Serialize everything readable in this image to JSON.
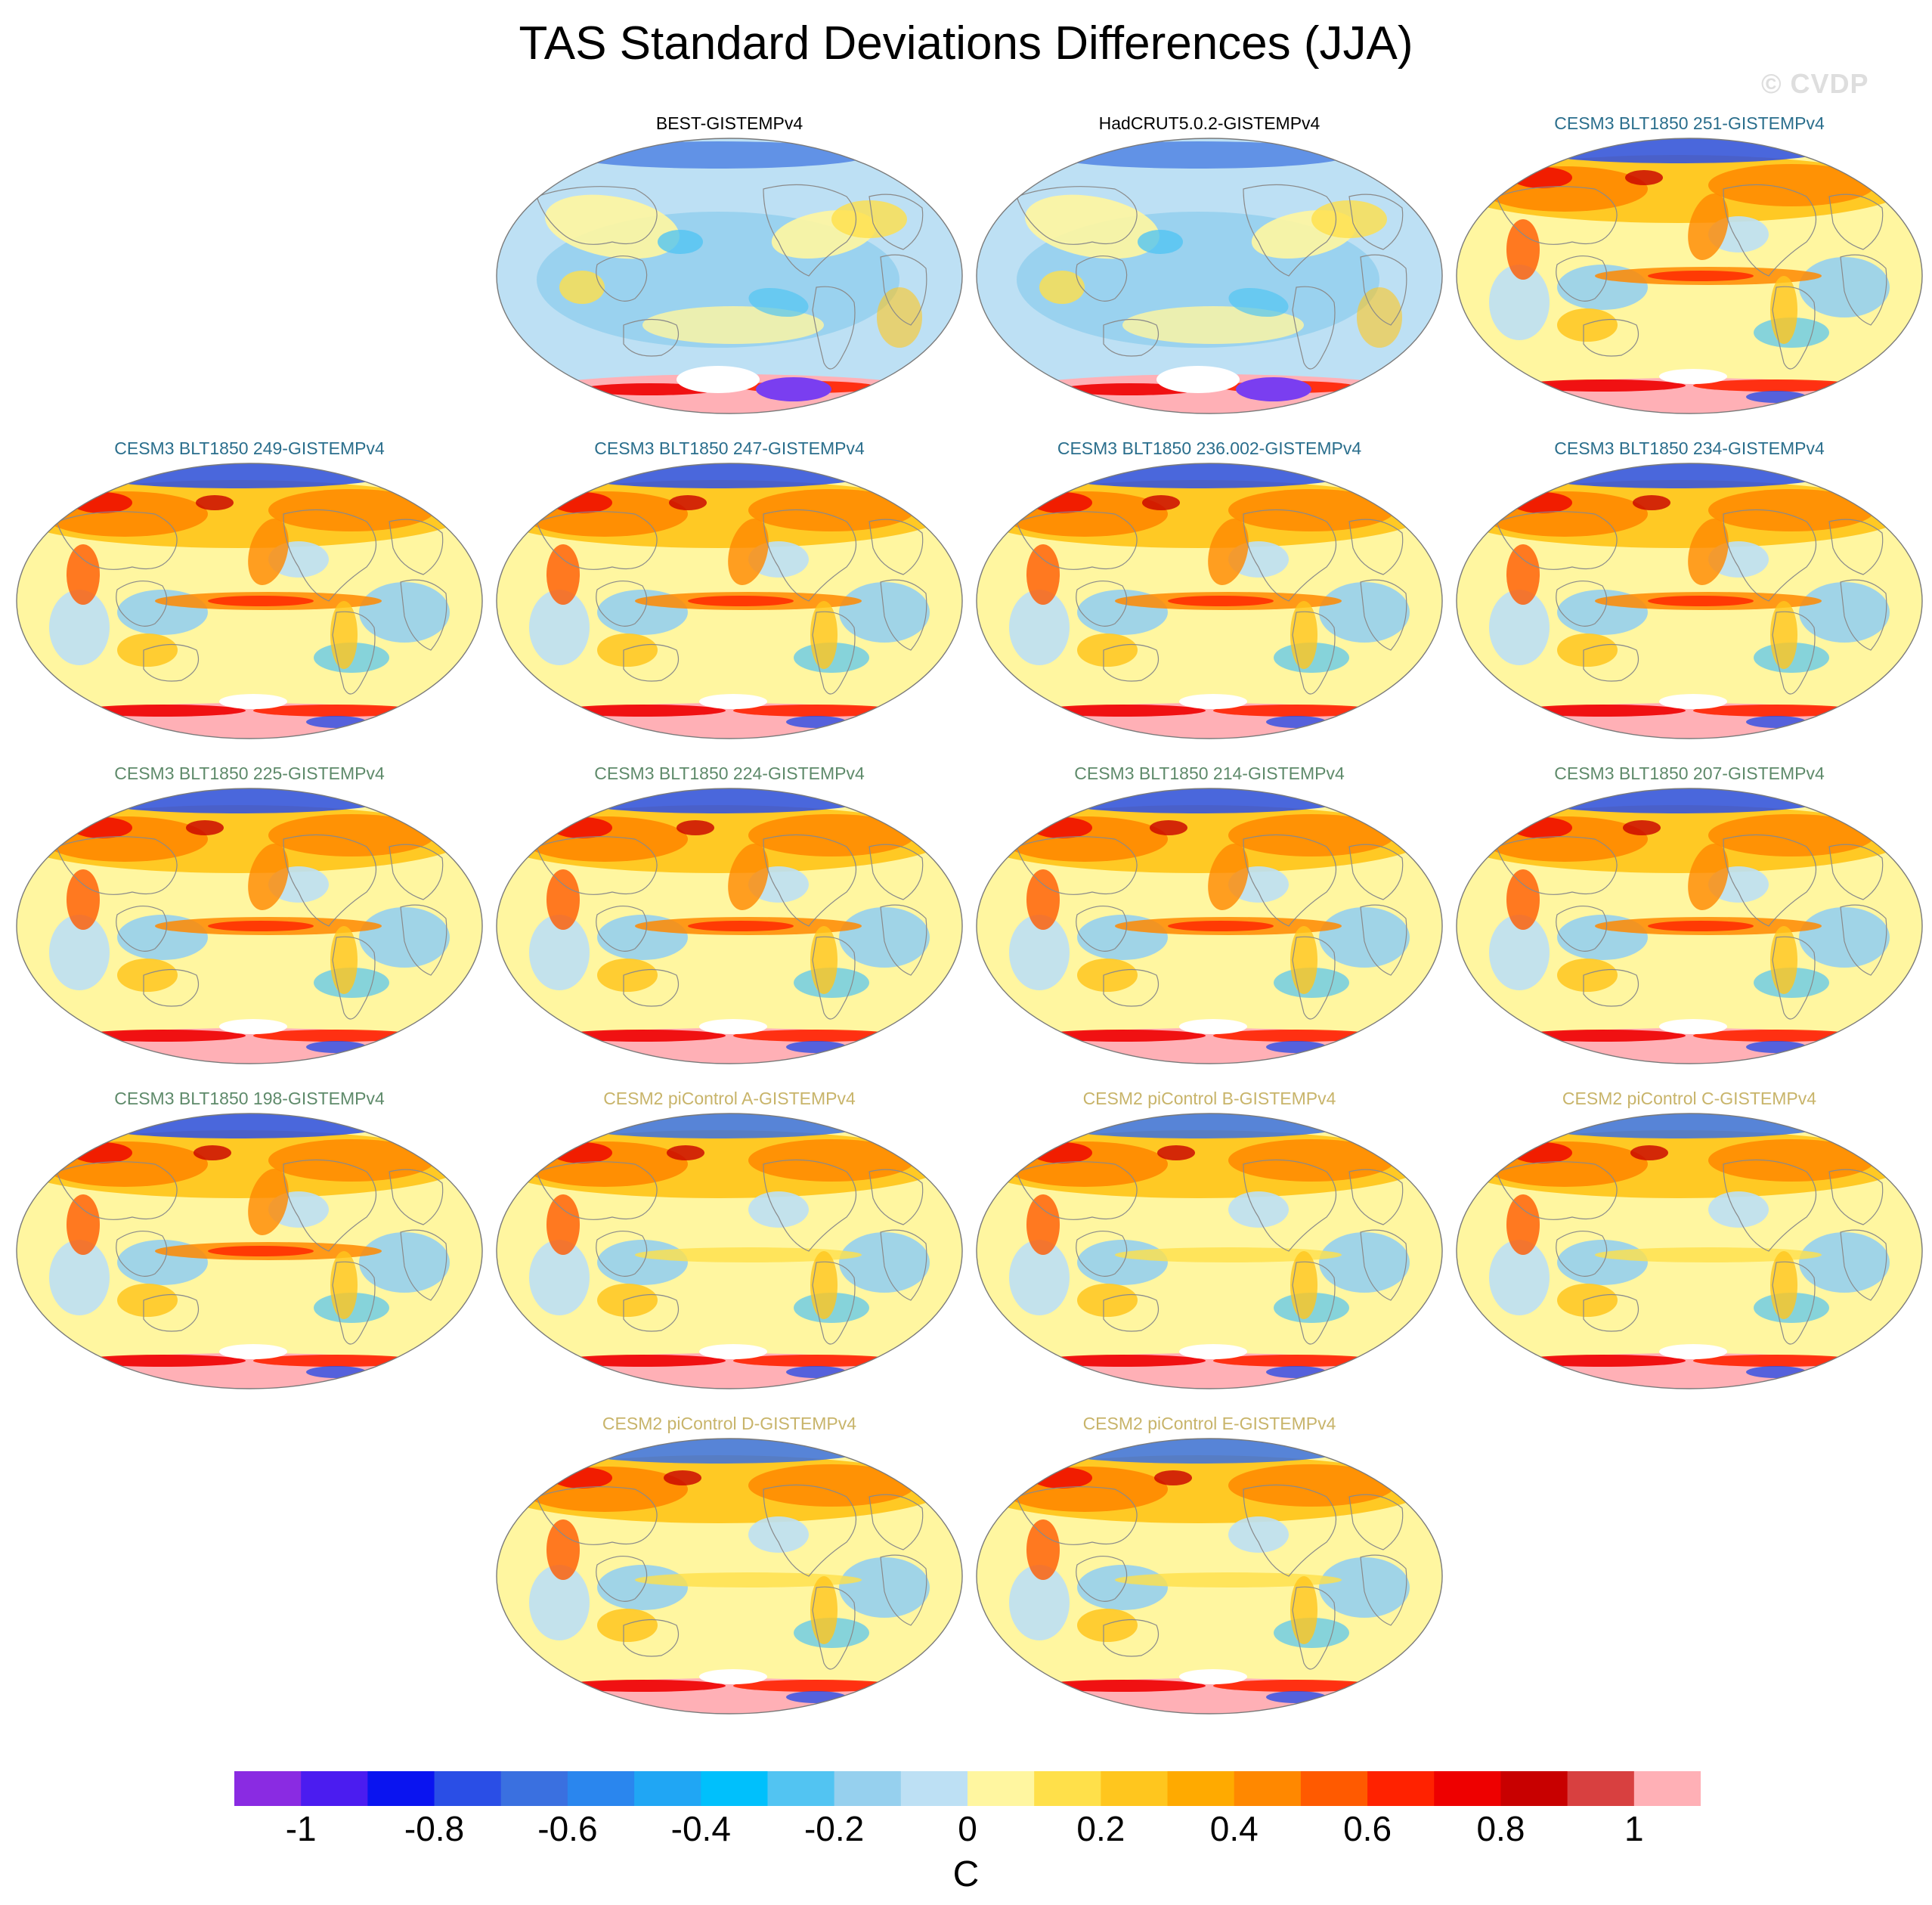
{
  "title": "TAS Standard Deviations Differences (JJA)",
  "watermark": "© CVDP",
  "panels": [
    {
      "label": "BEST-GISTEMPv4",
      "color": "#000000",
      "group": "obs"
    },
    {
      "label": "HadCRUT5.0.2-GISTEMPv4",
      "color": "#000000",
      "group": "obs"
    },
    {
      "label": "CESM3 BLT1850 251-GISTEMPv4",
      "color": "#2a6e8c",
      "group": "cesm3-a"
    },
    {
      "label": "CESM3 BLT1850 249-GISTEMPv4",
      "color": "#2a6e8c",
      "group": "cesm3-a"
    },
    {
      "label": "CESM3 BLT1850 247-GISTEMPv4",
      "color": "#2a6e8c",
      "group": "cesm3-a"
    },
    {
      "label": "CESM3 BLT1850 236.002-GISTEMPv4",
      "color": "#2a6e8c",
      "group": "cesm3-a"
    },
    {
      "label": "CESM3 BLT1850 234-GISTEMPv4",
      "color": "#2a6e8c",
      "group": "cesm3-a"
    },
    {
      "label": "CESM3 BLT1850 225-GISTEMPv4",
      "color": "#5e8a6a",
      "group": "cesm3-b"
    },
    {
      "label": "CESM3 BLT1850 224-GISTEMPv4",
      "color": "#5e8a6a",
      "group": "cesm3-b"
    },
    {
      "label": "CESM3 BLT1850 214-GISTEMPv4",
      "color": "#5e8a6a",
      "group": "cesm3-b"
    },
    {
      "label": "CESM3 BLT1850 207-GISTEMPv4",
      "color": "#5e8a6a",
      "group": "cesm3-b"
    },
    {
      "label": "CESM3 BLT1850 198-GISTEMPv4",
      "color": "#5e8a6a",
      "group": "cesm3-b"
    },
    {
      "label": "CESM2 piControl A-GISTEMPv4",
      "color": "#c8b46a",
      "group": "cesm2"
    },
    {
      "label": "CESM2 piControl B-GISTEMPv4",
      "color": "#c8b46a",
      "group": "cesm2"
    },
    {
      "label": "CESM2 piControl C-GISTEMPv4",
      "color": "#c8b46a",
      "group": "cesm2"
    },
    {
      "label": "CESM2 piControl D-GISTEMPv4",
      "color": "#c8b46a",
      "group": "cesm2"
    },
    {
      "label": "CESM2 piControl E-GISTEMPv4",
      "color": "#c8b46a",
      "group": "cesm2"
    }
  ],
  "colorbar": {
    "units": "C",
    "colors": [
      "#8a2be2",
      "#4b1cf0",
      "#0a14f0",
      "#2a4ee6",
      "#3a70e0",
      "#2a86ee",
      "#20a6f4",
      "#00c0fc",
      "#52c4f2",
      "#96d0ee",
      "#bde0f4",
      "#fff6a0",
      "#ffe04a",
      "#ffc61e",
      "#ffaa00",
      "#ff8800",
      "#ff5a00",
      "#ff2200",
      "#ee0000",
      "#c80000",
      "#d84040",
      "#ffb0b6"
    ],
    "tick_labels": [
      "-1",
      "-0.8",
      "-0.6",
      "-0.4",
      "-0.2",
      "0",
      "0.2",
      "0.4",
      "0.6",
      "0.8",
      "1"
    ],
    "tick_values": [
      -1,
      -0.8,
      -0.6,
      -0.4,
      -0.2,
      0,
      0.2,
      0.4,
      0.6,
      0.8,
      1
    ],
    "min": -1.1,
    "max": 1.1
  }
}
